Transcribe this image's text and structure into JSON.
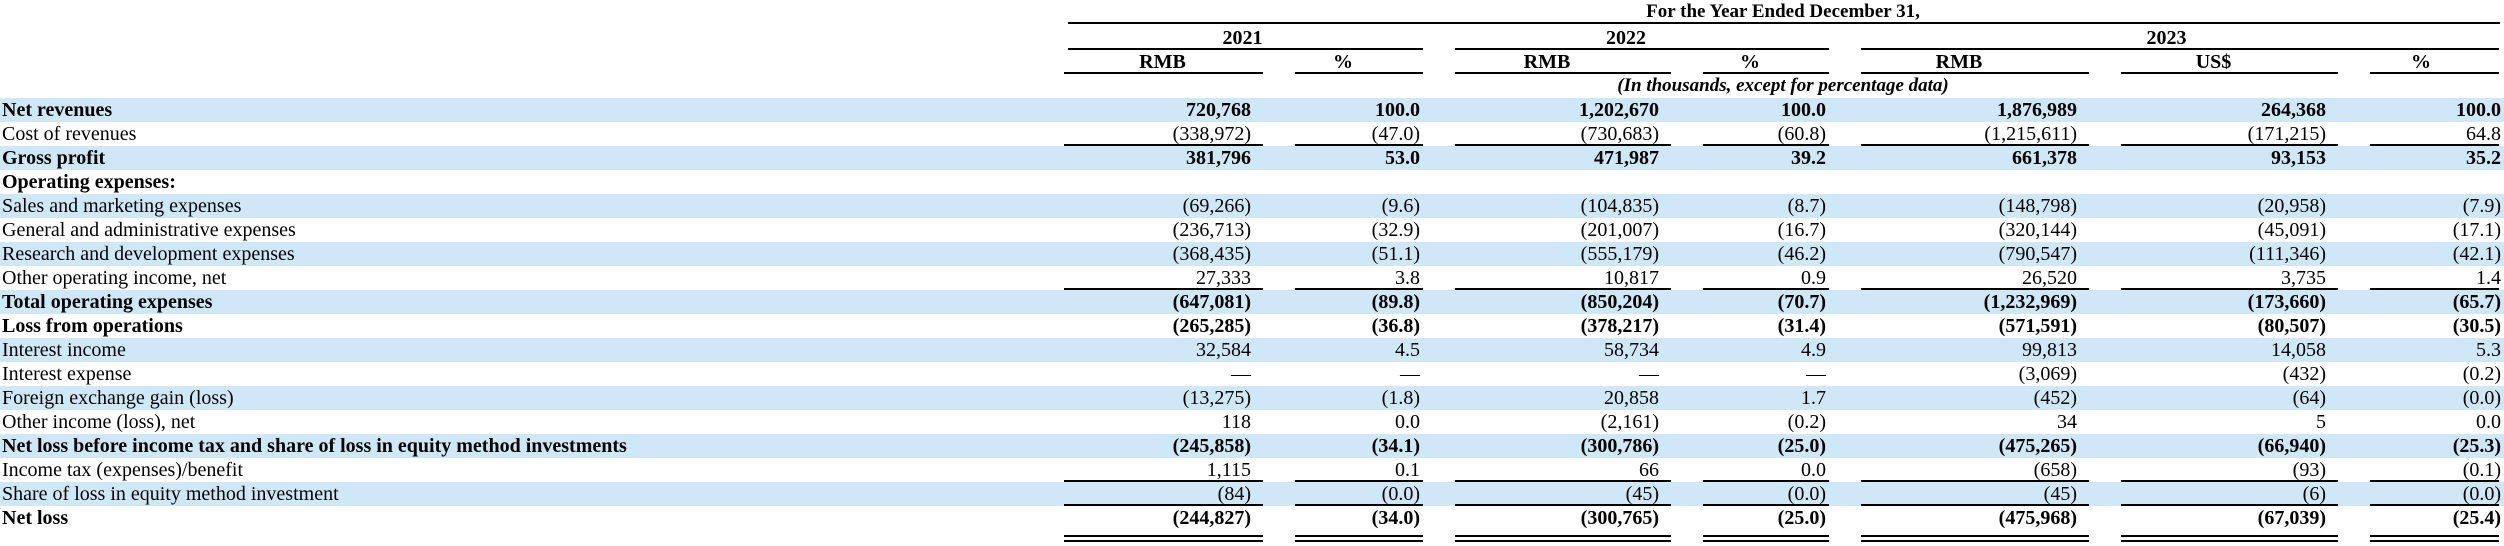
{
  "table": {
    "title": "For the Year Ended December 31,",
    "note": "(In thousands, except for percentage data)",
    "year_groups": [
      {
        "year": "2021",
        "cols": [
          "RMB",
          "%"
        ]
      },
      {
        "year": "2022",
        "cols": [
          "RMB",
          "%"
        ]
      },
      {
        "year": "2023",
        "cols": [
          "RMB",
          "US$",
          "%"
        ]
      }
    ],
    "rows": [
      {
        "label": "Net revenues",
        "bold": true,
        "values": [
          "720,768",
          "100.0",
          "1,202,670",
          "100.0",
          "1,876,989",
          "264,368",
          "100.0"
        ]
      },
      {
        "label": "Cost of revenues",
        "underline": true,
        "values": [
          "(338,972)",
          "(47.0)",
          "(730,683)",
          "(60.8)",
          "(1,215,611)",
          "(171,215)",
          "64.8"
        ]
      },
      {
        "label": "Gross profit",
        "bold": true,
        "values": [
          "381,796",
          "53.0",
          "471,987",
          "39.2",
          "661,378",
          "93,153",
          "35.2"
        ]
      },
      {
        "label": "Operating expenses:",
        "bold": true,
        "values": [
          "",
          "",
          "",
          "",
          "",
          "",
          ""
        ]
      },
      {
        "label": "Sales and marketing expenses",
        "values": [
          "(69,266)",
          "(9.6)",
          "(104,835)",
          "(8.7)",
          "(148,798)",
          "(20,958)",
          "(7.9)"
        ]
      },
      {
        "label": "General and administrative expenses",
        "values": [
          "(236,713)",
          "(32.9)",
          "(201,007)",
          "(16.7)",
          "(320,144)",
          "(45,091)",
          "(17.1)"
        ]
      },
      {
        "label": "Research and development expenses",
        "values": [
          "(368,435)",
          "(51.1)",
          "(555,179)",
          "(46.2)",
          "(790,547)",
          "(111,346)",
          "(42.1)"
        ]
      },
      {
        "label": "Other operating income, net",
        "underline": true,
        "values": [
          "27,333",
          "3.8",
          "10,817",
          "0.9",
          "26,520",
          "3,735",
          "1.4"
        ]
      },
      {
        "label": "Total operating expenses",
        "bold": true,
        "values": [
          "(647,081)",
          "(89.8)",
          "(850,204)",
          "(70.7)",
          "(1,232,969)",
          "(173,660)",
          "(65.7)"
        ]
      },
      {
        "label": "Loss from operations",
        "bold": true,
        "values": [
          "(265,285)",
          "(36.8)",
          "(378,217)",
          "(31.4)",
          "(571,591)",
          "(80,507)",
          "(30.5)"
        ]
      },
      {
        "label": "Interest income",
        "values": [
          "32,584",
          "4.5",
          "58,734",
          "4.9",
          "99,813",
          "14,058",
          "5.3"
        ]
      },
      {
        "label": "Interest expense",
        "values": [
          "—",
          "—",
          "—",
          "—",
          "(3,069)",
          "(432)",
          "(0.2)"
        ]
      },
      {
        "label": "Foreign exchange gain (loss)",
        "values": [
          "(13,275)",
          "(1.8)",
          "20,858",
          "1.7",
          "(452)",
          "(64)",
          "(0.0)"
        ]
      },
      {
        "label": "Other income (loss), net",
        "values": [
          "118",
          "0.0",
          "(2,161)",
          "(0.2)",
          "34",
          "5",
          "0.0"
        ]
      },
      {
        "label": "Net loss before income tax and share of loss in equity method investments",
        "bold": true,
        "values": [
          "(245,858)",
          "(34.1)",
          "(300,786)",
          "(25.0)",
          "(475,265)",
          "(66,940)",
          "(25.3)"
        ]
      },
      {
        "label": "Income tax (expenses)/benefit",
        "underline": true,
        "values": [
          "1,115",
          "0.1",
          "66",
          "0.0",
          "(658)",
          "(93)",
          "(0.1)"
        ]
      },
      {
        "label": "Share of loss in equity method investment",
        "underline": true,
        "values": [
          "(84)",
          "(0.0)",
          "(45)",
          "(0.0)",
          "(45)",
          "(6)",
          "(0.0)"
        ]
      },
      {
        "label": "Net loss",
        "bold": true,
        "double_underline": true,
        "values": [
          "(244,827)",
          "(34.0)",
          "(300,765)",
          "(25.0)",
          "(475,968)",
          "(67,039)",
          "(25.4)"
        ]
      }
    ]
  }
}
